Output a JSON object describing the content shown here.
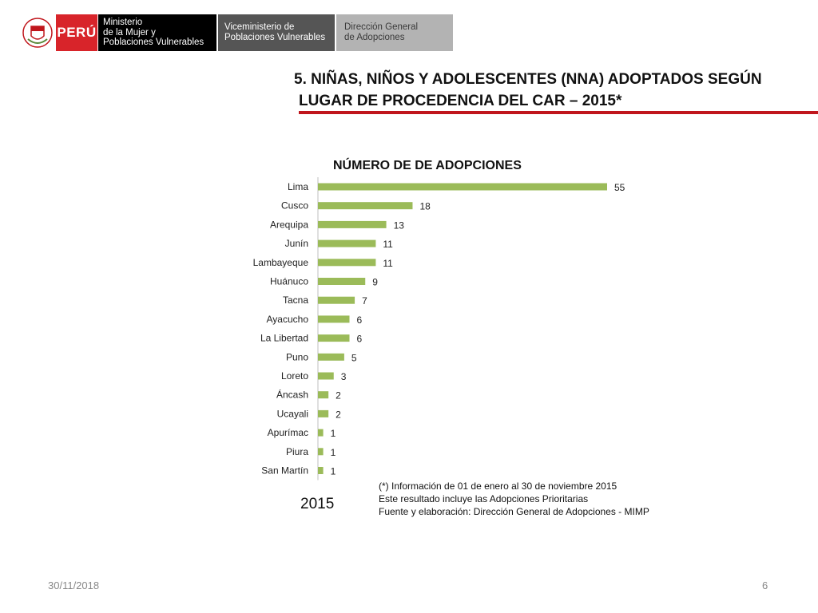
{
  "header": {
    "country": "PERÚ",
    "ministry": [
      "Ministerio",
      "de la Mujer y",
      "Poblaciones Vulnerables"
    ],
    "vice_ministry": [
      "Viceministerio de",
      "Poblaciones Vulnerables"
    ],
    "direction": [
      "Dirección General",
      "de Adopciones"
    ],
    "colors": {
      "peru_red": "#d8242a",
      "ministry_black": "#000000",
      "vice_gray": "#555555",
      "direction_gray": "#b3b3b3"
    }
  },
  "slide": {
    "title_line1": "5. NIÑAS, NIÑOS Y ADOLESCENTES (NNA) ADOPTADOS SEGÚN",
    "title_line2": "LUGAR DE PROCEDENCIA DEL CAR – 2015*",
    "year": "2015",
    "notes": [
      "(*) Información de 01 de enero al 30 de noviembre 2015",
      "Este resultado incluye las Adopciones Prioritarias",
      "Fuente y elaboración: Dirección General de Adopciones - MIMP"
    ],
    "date": "30/11/2018",
    "page": "6"
  },
  "chart_data": {
    "type": "bar",
    "orientation": "horizontal",
    "title": "NÚMERO DE DE ADOPCIONES",
    "categories": [
      "Lima",
      "Cusco",
      "Arequipa",
      "Junín",
      "Lambayeque",
      "Huánuco",
      "Tacna",
      "Ayacucho",
      "La Libertad",
      "Puno",
      "Loreto",
      "Áncash",
      "Ucayali",
      "Apurímac",
      "Piura",
      "San Martín"
    ],
    "values": [
      55,
      18,
      13,
      11,
      11,
      9,
      7,
      6,
      6,
      5,
      3,
      2,
      2,
      1,
      1,
      1
    ],
    "xlim": [
      0,
      55
    ],
    "grid": false,
    "bar_color": "#9bbb59"
  }
}
